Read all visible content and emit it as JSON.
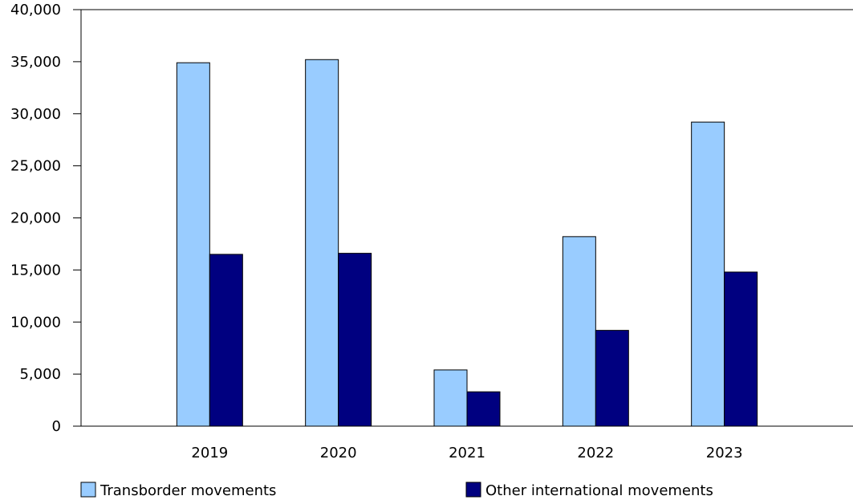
{
  "chart_data": {
    "type": "bar",
    "title": "",
    "xlabel": "",
    "ylabel": "",
    "categories": [
      "2019",
      "2020",
      "2021",
      "2022",
      "2023"
    ],
    "series": [
      {
        "name": "Transborder movements",
        "values": [
          34900,
          35200,
          5400,
          18200,
          29200
        ],
        "color": "#99ccff"
      },
      {
        "name": "Other international movements",
        "values": [
          16500,
          16600,
          3300,
          9200,
          14800
        ],
        "color": "#000080"
      }
    ],
    "ylim": [
      0,
      40000
    ],
    "yticks": [
      "0",
      "5,000",
      "10,000",
      "15,000",
      "20,000",
      "25,000",
      "30,000",
      "35,000",
      "40,000"
    ],
    "grid": false,
    "legend_position": "bottom"
  }
}
